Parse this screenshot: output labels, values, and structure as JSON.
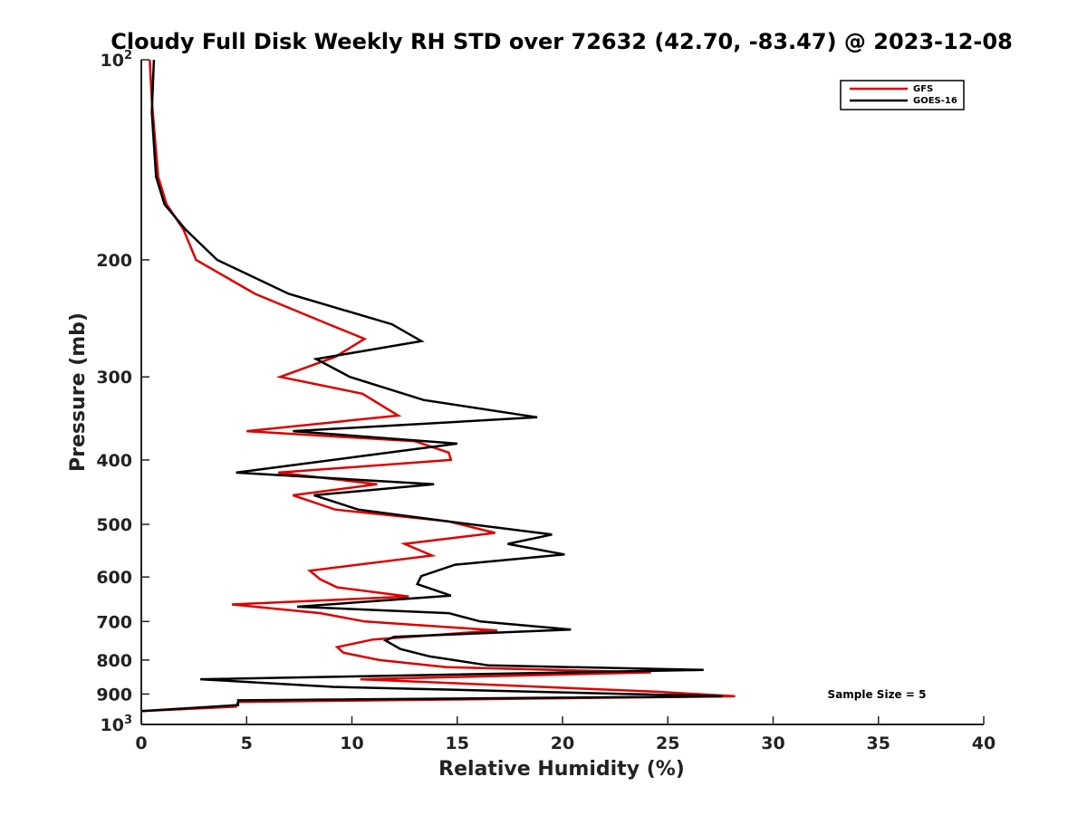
{
  "chart_data": {
    "type": "line",
    "title": "Cloudy Full Disk Weekly RH STD over 72632 (42.70, -83.47) @ 2023-12-08",
    "xlabel": "Relative Humidity (%)",
    "ylabel": "Pressure (mb)",
    "xlim": [
      0,
      40
    ],
    "ylim": [
      100,
      1000
    ],
    "yscale": "log",
    "y_reversed": true,
    "x_ticks": [
      0,
      5,
      10,
      15,
      20,
      25,
      30,
      35,
      40
    ],
    "y_ticks": [
      {
        "value": 100,
        "label": "10",
        "sup": "2"
      },
      {
        "value": 200,
        "label": "200"
      },
      {
        "value": 300,
        "label": "300"
      },
      {
        "value": 400,
        "label": "400"
      },
      {
        "value": 500,
        "label": "500"
      },
      {
        "value": 600,
        "label": "600"
      },
      {
        "value": 700,
        "label": "700"
      },
      {
        "value": 800,
        "label": "800"
      },
      {
        "value": 900,
        "label": "900"
      },
      {
        "value": 1000,
        "label": "10",
        "sup": "3"
      }
    ],
    "grid": false,
    "legend_position": "top-right",
    "annotation": "Sample Size = 5",
    "series": [
      {
        "name": "GFS",
        "color": "#dd0000",
        "points": [
          [
            0.4,
            100
          ],
          [
            0.5,
            115
          ],
          [
            0.8,
            150
          ],
          [
            1.2,
            165
          ],
          [
            2.0,
            180
          ],
          [
            2.6,
            200
          ],
          [
            5.4,
            225
          ],
          [
            8.9,
            250
          ],
          [
            10.6,
            263
          ],
          [
            9.2,
            280
          ],
          [
            6.6,
            300
          ],
          [
            10.5,
            318
          ],
          [
            12.2,
            343
          ],
          [
            5.0,
            362
          ],
          [
            13.0,
            375
          ],
          [
            14.6,
            390
          ],
          [
            14.7,
            400
          ],
          [
            6.5,
            418
          ],
          [
            11.2,
            435
          ],
          [
            7.2,
            452
          ],
          [
            9.2,
            475
          ],
          [
            14.6,
            495
          ],
          [
            16.8,
            515
          ],
          [
            12.5,
            535
          ],
          [
            13.8,
            557
          ],
          [
            8.0,
            587
          ],
          [
            8.5,
            605
          ],
          [
            9.3,
            622
          ],
          [
            12.7,
            642
          ],
          [
            4.3,
            660
          ],
          [
            8.5,
            680
          ],
          [
            10.6,
            700
          ],
          [
            16.9,
            722
          ],
          [
            11.0,
            745
          ],
          [
            9.3,
            765
          ],
          [
            9.6,
            780
          ],
          [
            11.3,
            800
          ],
          [
            14.5,
            820
          ],
          [
            24.2,
            835
          ],
          [
            10.4,
            855
          ],
          [
            24.5,
            893
          ],
          [
            28.2,
            907
          ],
          [
            4.6,
            925
          ],
          [
            4.5,
            940
          ],
          [
            0.0,
            955
          ]
        ]
      },
      {
        "name": "GOES-16",
        "color": "#000000",
        "points": [
          [
            0.6,
            100
          ],
          [
            0.5,
            120
          ],
          [
            0.7,
            150
          ],
          [
            1.1,
            165
          ],
          [
            2.1,
            180
          ],
          [
            3.6,
            200
          ],
          [
            7.0,
            225
          ],
          [
            11.9,
            250
          ],
          [
            13.3,
            265
          ],
          [
            8.3,
            282
          ],
          [
            9.9,
            300
          ],
          [
            13.4,
            325
          ],
          [
            18.8,
            345
          ],
          [
            7.2,
            362
          ],
          [
            15.0,
            378
          ],
          [
            10.4,
            395
          ],
          [
            4.5,
            418
          ],
          [
            13.9,
            435
          ],
          [
            8.2,
            452
          ],
          [
            10.3,
            475
          ],
          [
            15.0,
            497
          ],
          [
            19.5,
            518
          ],
          [
            17.4,
            535
          ],
          [
            20.1,
            555
          ],
          [
            14.9,
            575
          ],
          [
            13.3,
            598
          ],
          [
            13.1,
            615
          ],
          [
            14.7,
            640
          ],
          [
            7.4,
            665
          ],
          [
            14.6,
            680
          ],
          [
            16.1,
            700
          ],
          [
            20.4,
            720
          ],
          [
            12.0,
            738
          ],
          [
            11.6,
            748
          ],
          [
            12.3,
            770
          ],
          [
            13.7,
            790
          ],
          [
            16.5,
            815
          ],
          [
            26.7,
            828
          ],
          [
            2.8,
            855
          ],
          [
            9.1,
            878
          ],
          [
            27.6,
            907
          ],
          [
            4.6,
            920
          ],
          [
            4.6,
            935
          ],
          [
            0.0,
            955
          ]
        ]
      }
    ]
  }
}
